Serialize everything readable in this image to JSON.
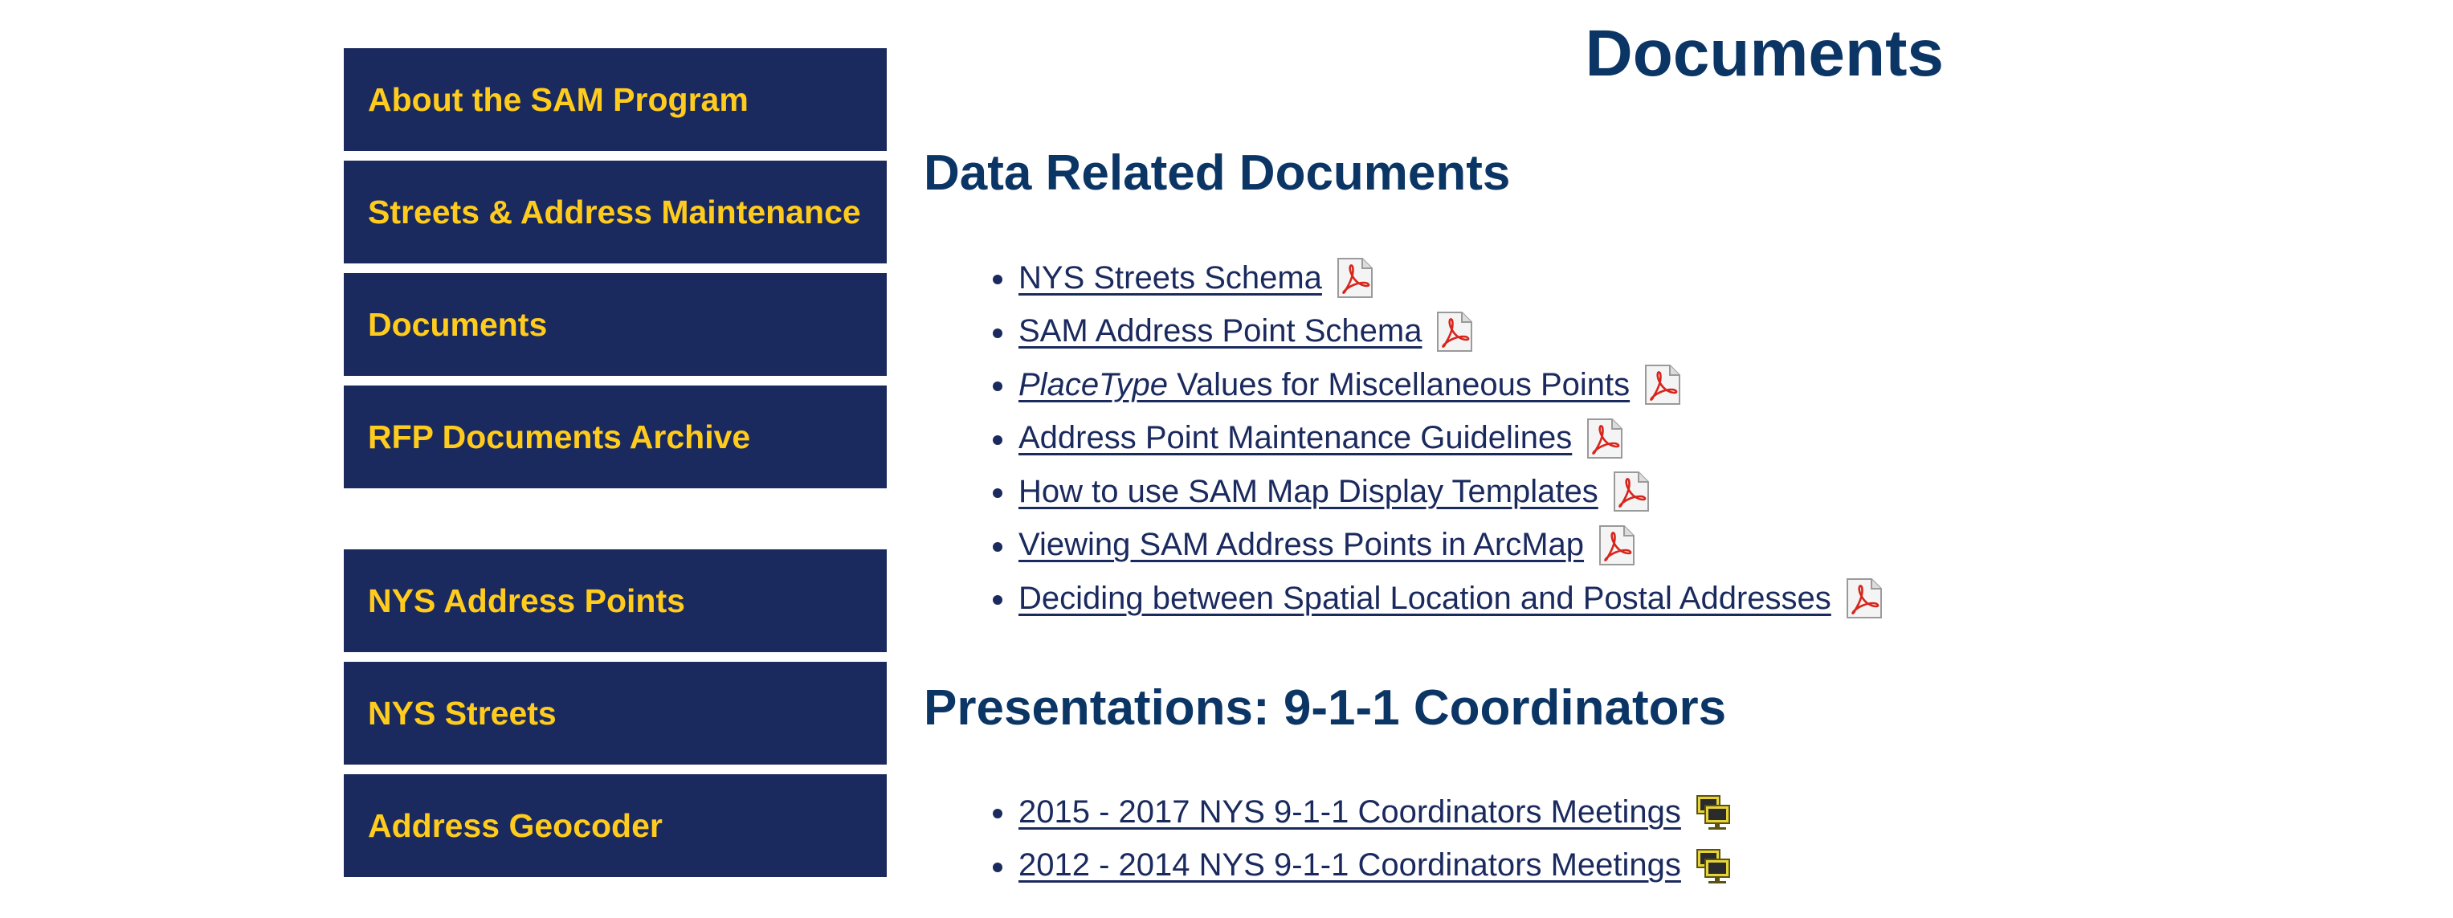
{
  "sidebar": {
    "items": [
      {
        "label": "About the SAM Program"
      },
      {
        "label": "Streets & Address Maintenance"
      },
      {
        "label": "Documents"
      },
      {
        "label": "RFP Documents Archive"
      },
      {
        "label": "NYS Address Points"
      },
      {
        "label": "NYS Streets"
      },
      {
        "label": "Address Geocoder"
      }
    ]
  },
  "page": {
    "title": "Documents"
  },
  "sections": [
    {
      "title": "Data Related Documents",
      "icon": "pdf-icon",
      "items": [
        {
          "label": "NYS Streets Schema"
        },
        {
          "label": "SAM Address Point Schema"
        },
        {
          "label_em": "PlaceType",
          "label": " Values for Miscellaneous Points"
        },
        {
          "label": "Address Point Maintenance Guidelines"
        },
        {
          "label": "How to use SAM Map Display Templates"
        },
        {
          "label": "Viewing SAM Address Points in ArcMap"
        },
        {
          "label": "Deciding between Spatial Location and Postal Addresses"
        }
      ]
    },
    {
      "title": "Presentations: 9-1-1 Coordinators",
      "icon": "presentation-icon",
      "items": [
        {
          "label": "2015 - 2017 NYS 9-1-1 Coordinators Meetings"
        },
        {
          "label": "2012 - 2014 NYS 9-1-1 Coordinators Meetings"
        }
      ]
    }
  ],
  "colors": {
    "nav_background": "#1b2a5e",
    "nav_text": "#ffcc1d",
    "heading": "#0b3565",
    "link": "#1b2a5e",
    "pdf_red": "#d7251c"
  }
}
